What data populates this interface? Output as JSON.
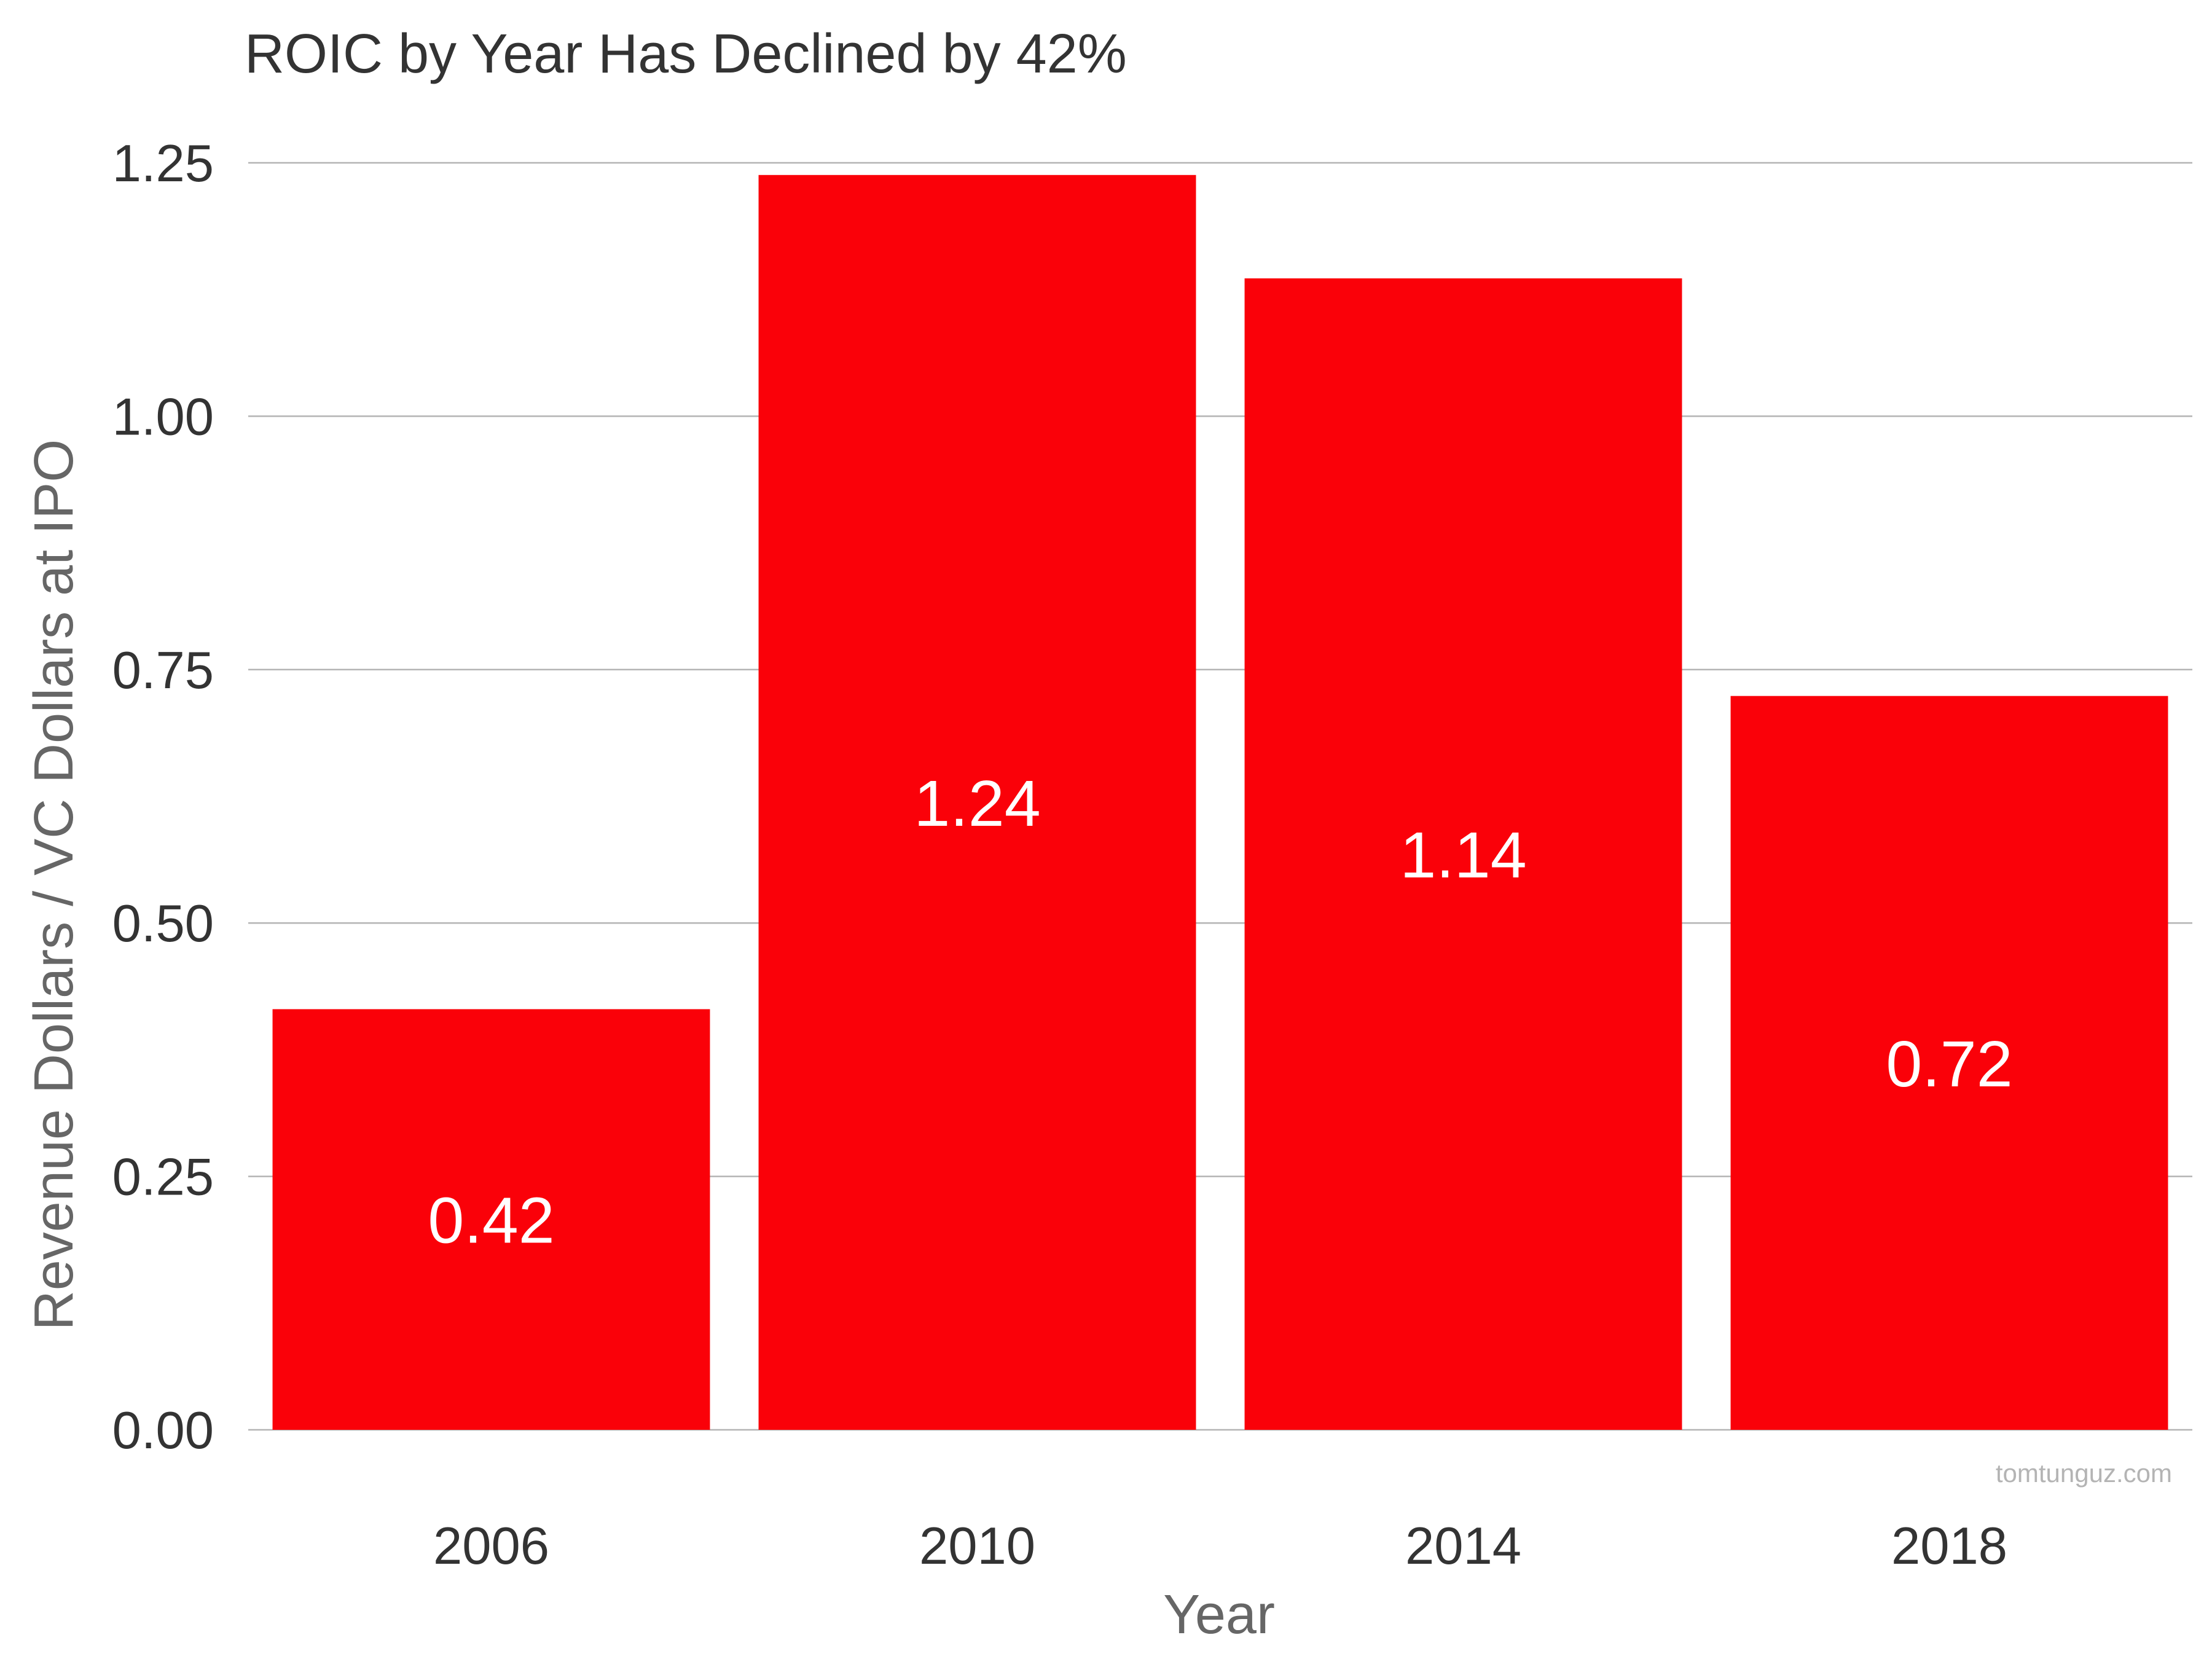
{
  "chart_data": {
    "type": "bar",
    "title": "ROIC by Year Has Declined by 42%",
    "xlabel": "Year",
    "ylabel": "Revenue Dollars / VC Dollars at IPO",
    "categories": [
      "2006",
      "2010",
      "2014",
      "2018"
    ],
    "values": [
      0.415,
      1.238,
      1.136,
      0.724
    ],
    "data_labels": [
      "0.42",
      "1.24",
      "1.14",
      "0.72"
    ],
    "ylim": [
      0,
      1.25
    ],
    "y_ticks": [
      0,
      0.25,
      0.5,
      0.75,
      1.0,
      1.25
    ],
    "y_tick_labels": [
      "0.00",
      "0.25",
      "0.50",
      "0.75",
      "1.00",
      "1.25"
    ],
    "grid": "horizontal",
    "legend": "none",
    "bar_color": "#fa0109",
    "watermark": "tomtunguz.com"
  }
}
